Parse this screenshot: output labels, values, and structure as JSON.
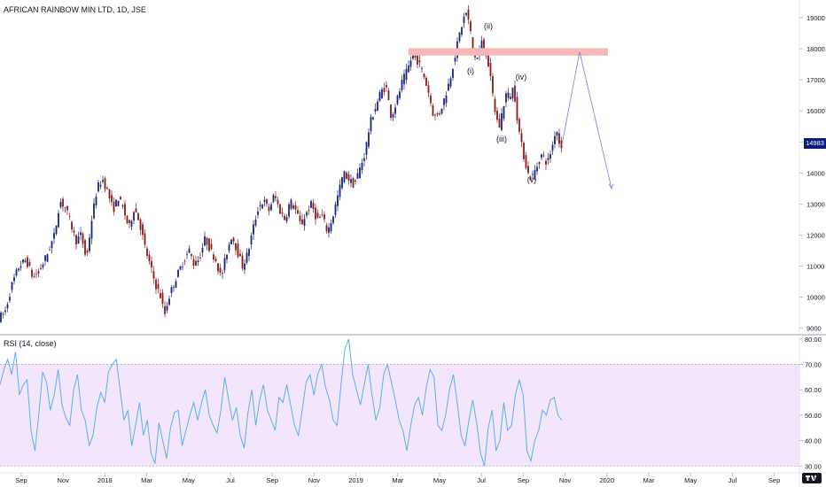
{
  "chart_data": {
    "type": "candlestick",
    "title": "AFRICAN RAINBOW MIN LTD, 1D, JSE",
    "price_axis": {
      "ticks": [
        9000,
        10000,
        11000,
        12000,
        13000,
        14000,
        15000,
        16000,
        17000,
        18000,
        19000
      ],
      "ylim": [
        8900,
        19400
      ]
    },
    "last_price_label": "14983",
    "time_axis": {
      "ticks": [
        "Sep",
        "Nov",
        "2018",
        "Mar",
        "May",
        "Jul",
        "Sep",
        "Nov",
        "2019",
        "Mar",
        "May",
        "Jul",
        "Sep",
        "Nov",
        "2020",
        "Mar",
        "May",
        "Jul",
        "Sep"
      ]
    },
    "price_path": [
      [
        0,
        9300
      ],
      [
        8,
        9500
      ],
      [
        16,
        10400
      ],
      [
        24,
        11000
      ],
      [
        32,
        11200
      ],
      [
        40,
        10600
      ],
      [
        48,
        10900
      ],
      [
        56,
        11400
      ],
      [
        64,
        12000
      ],
      [
        70,
        13100
      ],
      [
        76,
        12900
      ],
      [
        82,
        12400
      ],
      [
        88,
        11800
      ],
      [
        94,
        12000
      ],
      [
        100,
        11200
      ],
      [
        106,
        12500
      ],
      [
        112,
        13500
      ],
      [
        118,
        13800
      ],
      [
        124,
        13400
      ],
      [
        130,
        12800
      ],
      [
        136,
        13200
      ],
      [
        142,
        12800
      ],
      [
        148,
        12200
      ],
      [
        154,
        12900
      ],
      [
        160,
        12400
      ],
      [
        166,
        11600
      ],
      [
        172,
        11000
      ],
      [
        178,
        10400
      ],
      [
        184,
        10000
      ],
      [
        188,
        9400
      ],
      [
        192,
        9900
      ],
      [
        198,
        10400
      ],
      [
        204,
        10800
      ],
      [
        210,
        11200
      ],
      [
        216,
        11500
      ],
      [
        222,
        11000
      ],
      [
        228,
        11300
      ],
      [
        234,
        11900
      ],
      [
        240,
        11500
      ],
      [
        246,
        11200
      ],
      [
        252,
        10600
      ],
      [
        258,
        11400
      ],
      [
        264,
        12000
      ],
      [
        270,
        11500
      ],
      [
        276,
        11000
      ],
      [
        282,
        11400
      ],
      [
        288,
        12200
      ],
      [
        294,
        12900
      ],
      [
        300,
        13100
      ],
      [
        306,
        12800
      ],
      [
        312,
        13300
      ],
      [
        318,
        12800
      ],
      [
        324,
        12500
      ],
      [
        330,
        13100
      ],
      [
        336,
        12800
      ],
      [
        342,
        12300
      ],
      [
        348,
        12700
      ],
      [
        354,
        13000
      ],
      [
        360,
        12500
      ],
      [
        366,
        12600
      ],
      [
        372,
        12100
      ],
      [
        378,
        12600
      ],
      [
        384,
        13300
      ],
      [
        390,
        14000
      ],
      [
        396,
        13800
      ],
      [
        402,
        13600
      ],
      [
        408,
        14100
      ],
      [
        414,
        14600
      ],
      [
        420,
        15600
      ],
      [
        426,
        16100
      ],
      [
        432,
        16600
      ],
      [
        438,
        16800
      ],
      [
        444,
        15800
      ],
      [
        450,
        16300
      ],
      [
        456,
        16900
      ],
      [
        462,
        17300
      ],
      [
        468,
        17800
      ],
      [
        474,
        17600
      ],
      [
        480,
        17200
      ],
      [
        486,
        16600
      ],
      [
        492,
        15800
      ],
      [
        498,
        15900
      ],
      [
        504,
        16400
      ],
      [
        510,
        17000
      ],
      [
        516,
        17800
      ],
      [
        522,
        18600
      ],
      [
        528,
        19200
      ],
      [
        532,
        18800
      ],
      [
        536,
        18000
      ],
      [
        540,
        17600
      ],
      [
        546,
        18200
      ],
      [
        552,
        17800
      ],
      [
        558,
        16600
      ],
      [
        562,
        15800
      ],
      [
        566,
        15500
      ],
      [
        570,
        16100
      ],
      [
        574,
        16600
      ],
      [
        578,
        16400
      ],
      [
        582,
        16800
      ],
      [
        586,
        15800
      ],
      [
        590,
        15000
      ],
      [
        594,
        14500
      ],
      [
        598,
        14000
      ],
      [
        602,
        13800
      ],
      [
        608,
        14200
      ],
      [
        614,
        14600
      ],
      [
        620,
        14300
      ],
      [
        626,
        14900
      ],
      [
        630,
        15500
      ],
      [
        634,
        14900
      ]
    ],
    "resistance_zone": {
      "from": 17850,
      "to": 17950
    },
    "projection": [
      [
        634,
        14900
      ],
      [
        654,
        17900
      ],
      [
        690,
        13500
      ]
    ],
    "wave_labels": [
      {
        "text": "(i)",
        "x": 531,
        "price": 17200
      },
      {
        "text": "(ii)",
        "x": 551,
        "price": 18650
      },
      {
        "text": "(iii)",
        "x": 566,
        "price": 15000
      },
      {
        "text": "(iv)",
        "x": 588,
        "price": 17000
      },
      {
        "text": "(v)",
        "x": 600,
        "price": 13700
      }
    ],
    "rsi": {
      "title": "RSI (14, close)",
      "ticks": [
        30,
        40,
        50,
        60,
        70,
        80
      ],
      "ylim": [
        28,
        81
      ],
      "upper_band": 70,
      "lower_band": 30,
      "values": [
        62,
        68,
        72,
        66,
        75,
        58,
        62,
        64,
        44,
        36,
        50,
        67,
        63,
        52,
        58,
        68,
        54,
        49,
        46,
        60,
        66,
        52,
        48,
        38,
        42,
        53,
        59,
        55,
        67,
        70,
        72,
        60,
        48,
        52,
        38,
        46,
        55,
        42,
        48,
        35,
        31,
        47,
        40,
        33,
        45,
        51,
        52,
        38,
        44,
        50,
        55,
        48,
        55,
        60,
        50,
        46,
        43,
        52,
        65,
        56,
        48,
        53,
        42,
        37,
        51,
        60,
        46,
        56,
        62,
        52,
        48,
        44,
        57,
        55,
        62,
        54,
        46,
        42,
        52,
        63,
        66,
        58,
        66,
        70,
        61,
        56,
        48,
        46,
        62,
        76,
        80,
        66,
        60,
        54,
        62,
        70,
        58,
        48,
        53,
        66,
        70,
        63,
        56,
        48,
        44,
        36,
        46,
        54,
        57,
        50,
        61,
        68,
        65,
        46,
        44,
        50,
        60,
        66,
        55,
        42,
        38,
        48,
        56,
        47,
        35,
        30,
        45,
        52,
        36,
        40,
        55,
        44,
        46,
        58,
        64,
        58,
        36,
        32,
        40,
        44,
        52,
        50,
        56,
        57,
        50,
        48
      ]
    }
  }
}
